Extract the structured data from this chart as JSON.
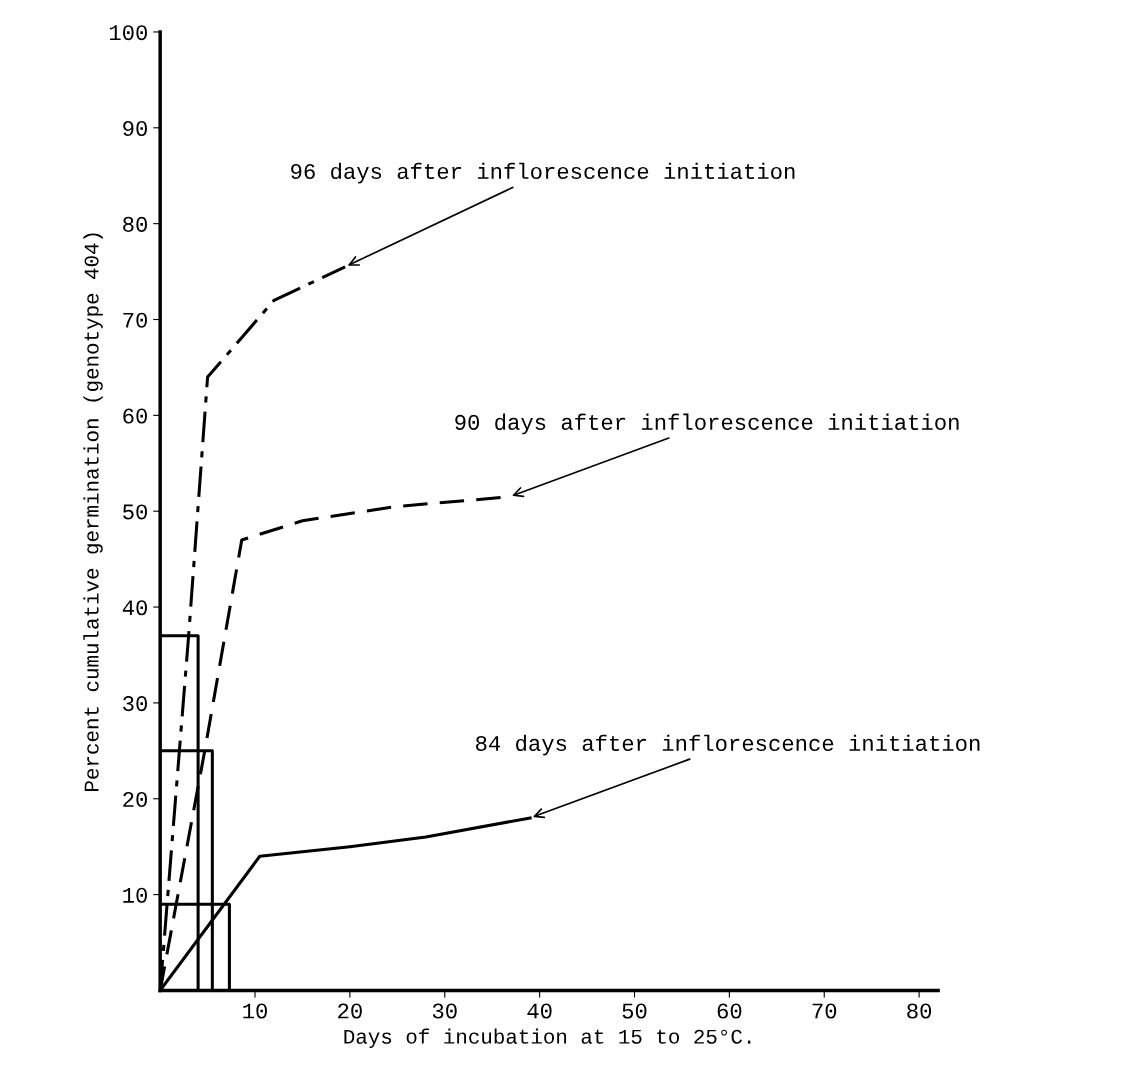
{
  "chart_data": {
    "type": "line",
    "xlabel": "Days of incubation at 15 to 25°C.",
    "ylabel": "Percent cumulative germination (genotype 404)",
    "xlim": [
      0,
      82
    ],
    "ylim": [
      0,
      100
    ],
    "xticks": [
      10,
      20,
      30,
      40,
      50,
      60,
      70,
      80
    ],
    "yticks": [
      10,
      20,
      30,
      40,
      50,
      60,
      70,
      80,
      90,
      100
    ],
    "grid": false,
    "legend": false,
    "marker": "none",
    "series": [
      {
        "color": "#000000",
        "line_style": "dashdot",
        "x": [
          0,
          3,
          5,
          12,
          19.5
        ],
        "values": [
          0,
          37,
          64,
          72,
          75.5
        ]
      },
      {
        "color": "#000000",
        "line_style": "dashed",
        "x": [
          0,
          4.7,
          8.6,
          15,
          25,
          36.8
        ],
        "values": [
          0,
          25,
          47,
          49,
          50.5,
          51.5
        ]
      },
      {
        "color": "#000000",
        "line_style": "solid",
        "x": [
          0,
          10.5,
          20,
          28,
          39
        ],
        "values": [
          0,
          14,
          15,
          16,
          18
        ]
      },
      {
        "color": "#000000",
        "line_style": "solid",
        "x": [
          0,
          4,
          4
        ],
        "values": [
          37,
          37,
          0
        ]
      },
      {
        "color": "#000000",
        "line_style": "solid",
        "x": [
          0,
          5.5,
          5.5
        ],
        "values": [
          25,
          25,
          0
        ]
      },
      {
        "color": "#000000",
        "line_style": "solid",
        "x": [
          0,
          7.3,
          7.3
        ],
        "values": [
          9,
          9,
          0
        ]
      }
    ],
    "annotations": [
      {
        "text": "96 days after inflorescence initiation",
        "x": 19.5,
        "y": 75.5
      },
      {
        "text": "90 days after inflorescence initiation",
        "x": 36.8,
        "y": 51.5
      },
      {
        "text": "84 days after inflorescence initiation",
        "x": 39,
        "y": 18
      }
    ]
  }
}
